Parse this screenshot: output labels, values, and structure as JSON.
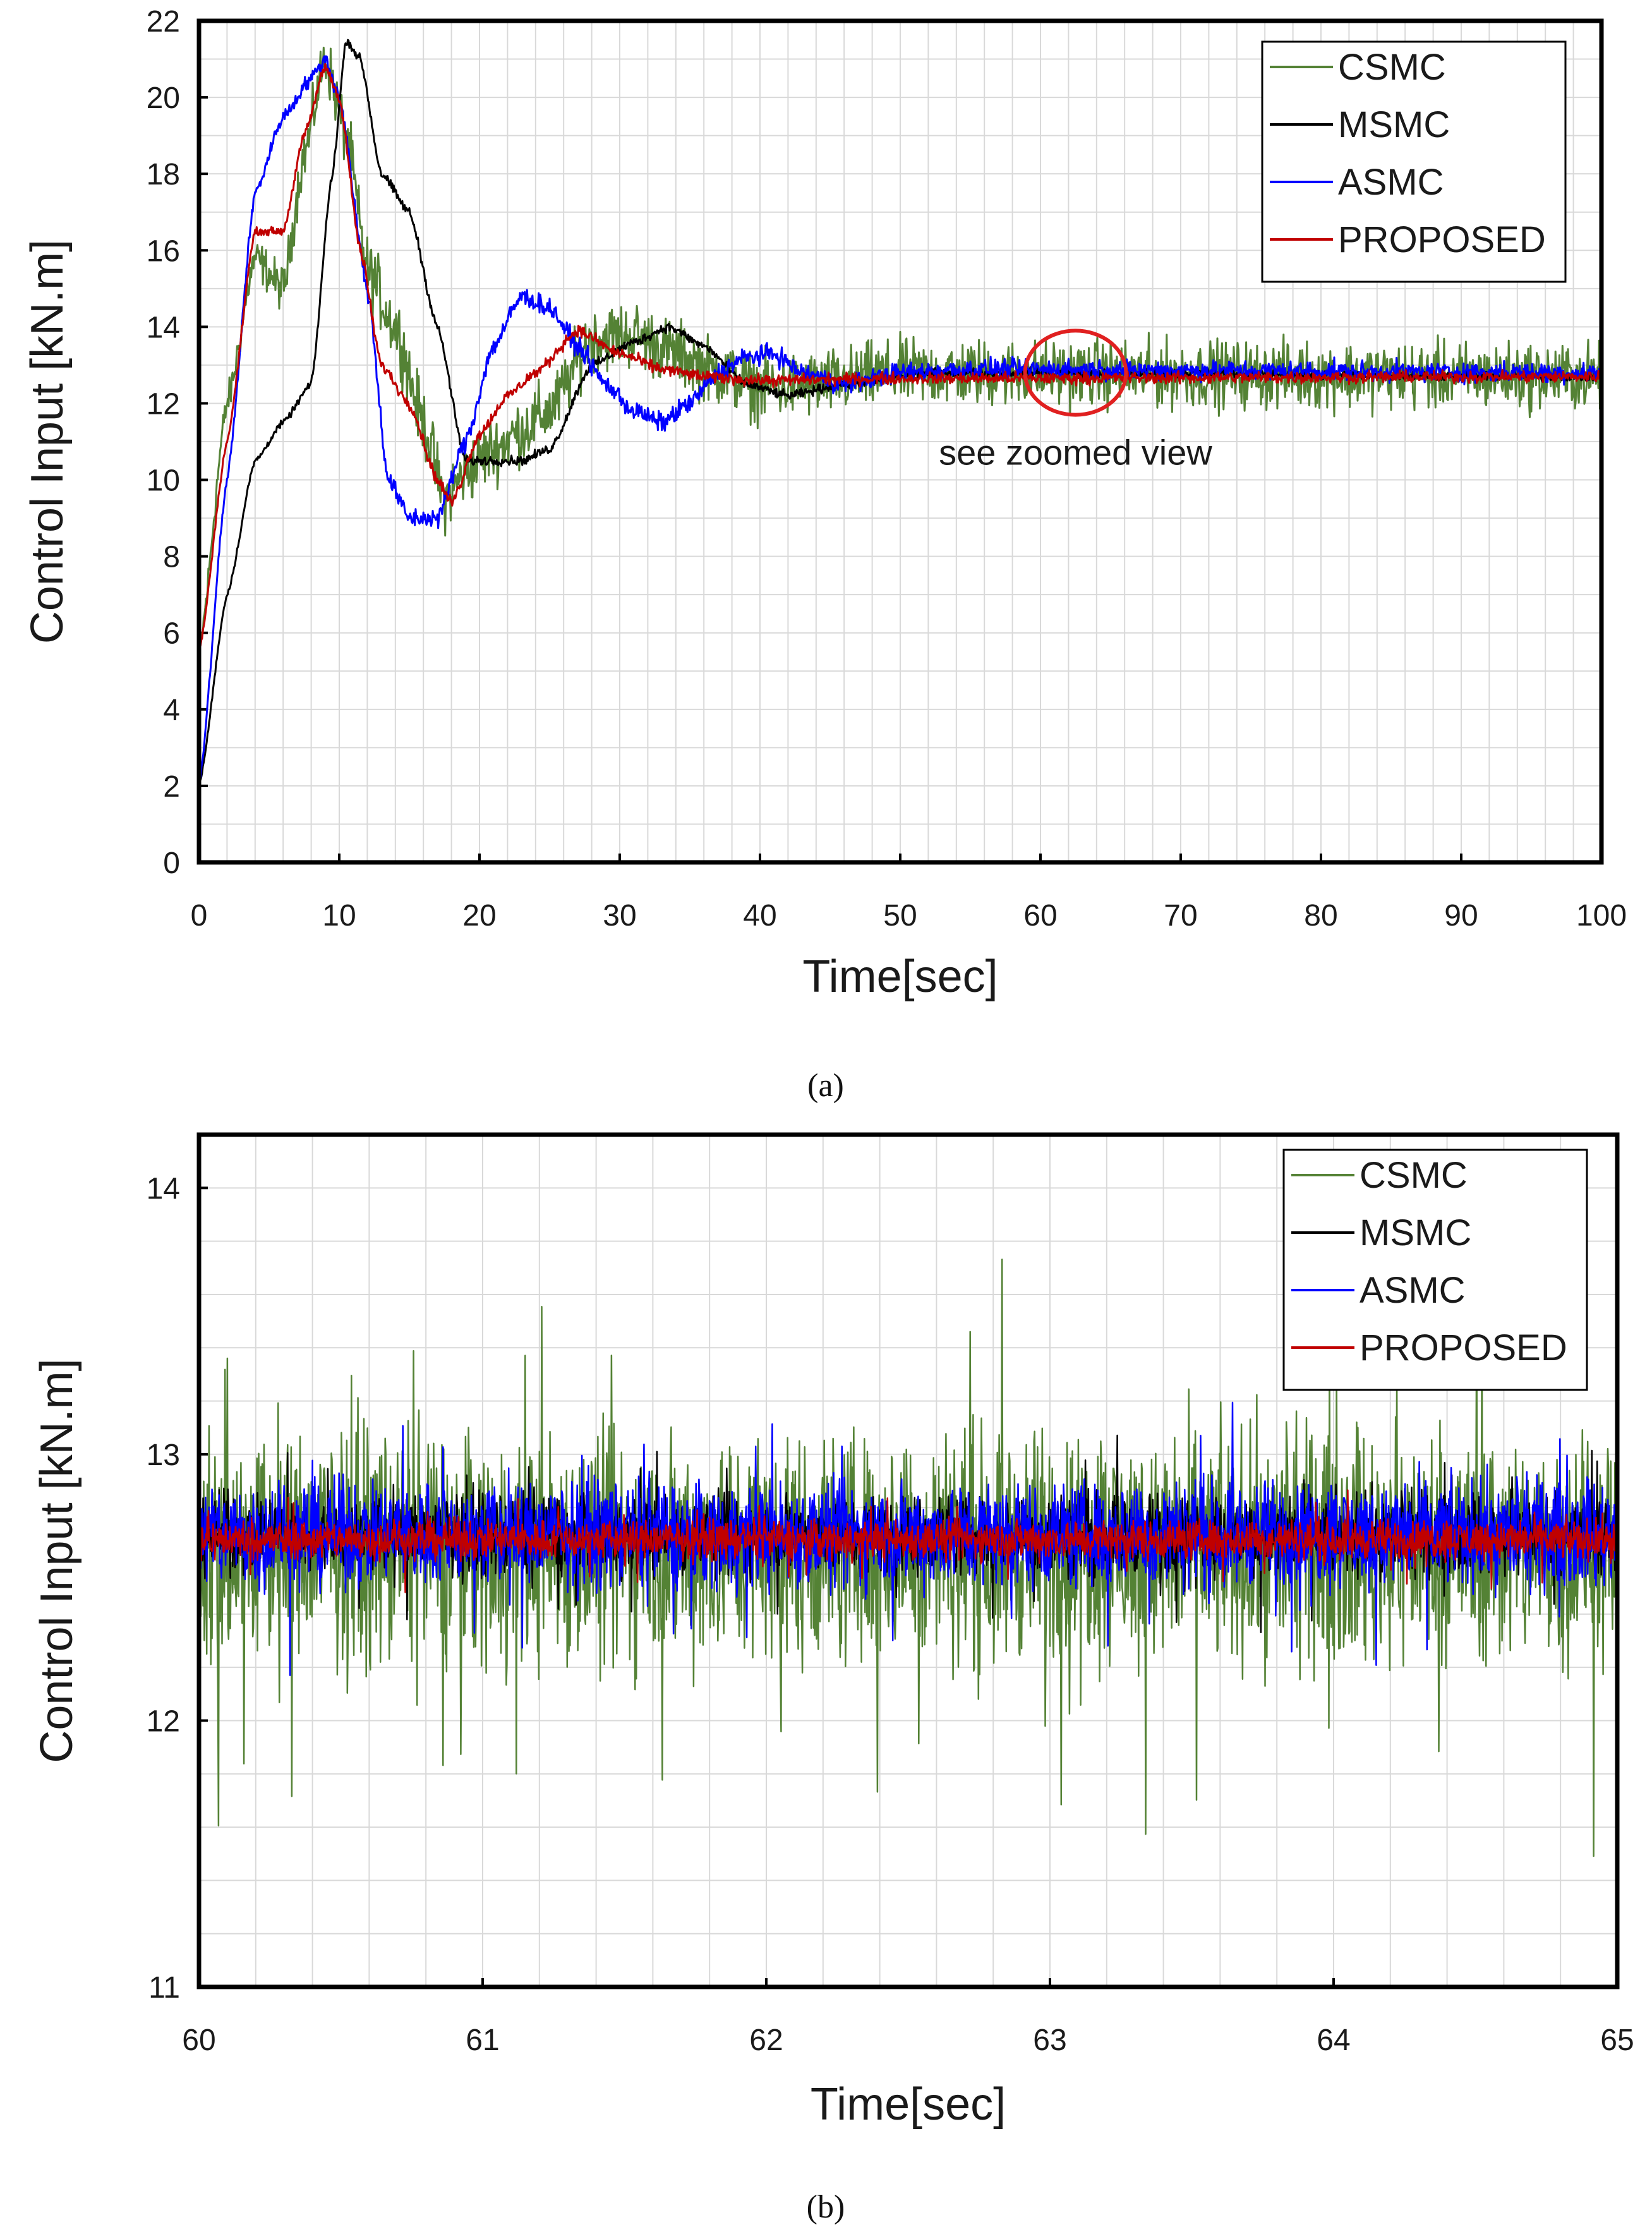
{
  "chart_data": [
    {
      "type": "line",
      "panel_label": "(a)",
      "xlabel": "Time[sec]",
      "ylabel": "Control Input [kN.m]",
      "xlim": [
        0,
        100
      ],
      "ylim": [
        0,
        22
      ],
      "xticks": [
        0,
        10,
        20,
        30,
        40,
        50,
        60,
        70,
        80,
        90,
        100
      ],
      "yticks": [
        0,
        2,
        4,
        6,
        8,
        10,
        12,
        14,
        16,
        18,
        20,
        22
      ],
      "legend_position": "top-right",
      "annotation": {
        "text": "see zoomed view",
        "center_x": 62.5,
        "center_y": 12.8,
        "rx": 3.6,
        "ry": 1.1
      },
      "series": [
        {
          "name": "CSMC",
          "color": "#548235",
          "noise": 0.85,
          "points": [
            [
              0,
              5.5
            ],
            [
              2,
              12
            ],
            [
              4,
              15.8
            ],
            [
              6,
              15
            ],
            [
              7.5,
              18.5
            ],
            [
              9,
              21
            ],
            [
              10.5,
              19
            ],
            [
              12,
              15.5
            ],
            [
              14,
              14
            ],
            [
              16,
              11.5
            ],
            [
              17.5,
              9.5
            ],
            [
              19,
              10.2
            ],
            [
              21,
              10.8
            ],
            [
              23,
              11.3
            ],
            [
              25,
              11.8
            ],
            [
              28,
              13.7
            ],
            [
              31,
              13.8
            ],
            [
              34,
              13.3
            ],
            [
              37,
              12.8
            ],
            [
              40,
              12.4
            ],
            [
              44,
              12.5
            ],
            [
              50,
              12.8
            ],
            [
              100,
              12.7
            ]
          ]
        },
        {
          "name": "MSMC",
          "color": "#000000",
          "noise": 0.12,
          "points": [
            [
              0,
              2
            ],
            [
              2,
              7
            ],
            [
              4,
              10.5
            ],
            [
              6,
              11.5
            ],
            [
              8,
              12.5
            ],
            [
              9.5,
              18
            ],
            [
              10.5,
              21.5
            ],
            [
              11.5,
              21
            ],
            [
              13,
              18
            ],
            [
              15,
              17
            ],
            [
              17,
              14
            ],
            [
              19,
              10.5
            ],
            [
              21,
              10.5
            ],
            [
              23,
              10.5
            ],
            [
              25,
              10.8
            ],
            [
              28,
              13
            ],
            [
              31,
              13.6
            ],
            [
              33.5,
              14
            ],
            [
              36,
              13.5
            ],
            [
              39,
              12.5
            ],
            [
              42,
              12.2
            ],
            [
              46,
              12.5
            ],
            [
              52,
              12.8
            ],
            [
              60,
              12.8
            ],
            [
              100,
              12.7
            ]
          ]
        },
        {
          "name": "ASMC",
          "color": "#0000ff",
          "noise": 0.25,
          "points": [
            [
              0,
              2
            ],
            [
              2,
              10
            ],
            [
              4,
              17.5
            ],
            [
              6,
              19.5
            ],
            [
              8,
              20.5
            ],
            [
              9,
              21
            ],
            [
              10,
              20
            ],
            [
              12,
              15
            ],
            [
              13.5,
              10
            ],
            [
              15,
              9
            ],
            [
              17,
              9
            ],
            [
              19,
              11
            ],
            [
              21,
              13.5
            ],
            [
              23,
              14.8
            ],
            [
              25,
              14.5
            ],
            [
              27,
              13.5
            ],
            [
              29,
              12.5
            ],
            [
              31,
              11.8
            ],
            [
              33,
              11.5
            ],
            [
              35,
              12
            ],
            [
              37,
              12.8
            ],
            [
              39,
              13.2
            ],
            [
              41,
              13.3
            ],
            [
              43,
              12.8
            ],
            [
              46,
              12.5
            ],
            [
              50,
              12.8
            ],
            [
              55,
              12.9
            ],
            [
              100,
              12.8
            ]
          ]
        },
        {
          "name": "PROPOSED",
          "color": "#c00000",
          "noise": 0.15,
          "points": [
            [
              0,
              5.5
            ],
            [
              2,
              11
            ],
            [
              4,
              16.5
            ],
            [
              6,
              16.5
            ],
            [
              7.5,
              19
            ],
            [
              9,
              20.8
            ],
            [
              10,
              20
            ],
            [
              11.5,
              16
            ],
            [
              13,
              13
            ],
            [
              15,
              12
            ],
            [
              17,
              10
            ],
            [
              18,
              9.4
            ],
            [
              20,
              11.2
            ],
            [
              22,
              12.2
            ],
            [
              24,
              12.8
            ],
            [
              27,
              13.9
            ],
            [
              30,
              13.3
            ],
            [
              33,
              12.9
            ],
            [
              36,
              12.7
            ],
            [
              40,
              12.6
            ],
            [
              50,
              12.65
            ],
            [
              100,
              12.7
            ]
          ]
        }
      ]
    },
    {
      "type": "line",
      "panel_label": "(b)",
      "xlabel": "Time[sec]",
      "ylabel": "Control Input [kN.m]",
      "xlim": [
        60,
        65
      ],
      "ylim": [
        11,
        14.2
      ],
      "xticks": [
        60,
        61,
        62,
        63,
        64,
        65
      ],
      "yticks": [
        11,
        12,
        13,
        14
      ],
      "legend_position": "top-right",
      "series": [
        {
          "name": "CSMC",
          "color": "#548235",
          "center": 12.65,
          "noise": 0.35
        },
        {
          "name": "MSMC",
          "color": "#000000",
          "center": 12.7,
          "noise": 0.12
        },
        {
          "name": "ASMC",
          "color": "#0000ff",
          "center": 12.7,
          "noise": 0.16
        },
        {
          "name": "PROPOSED",
          "color": "#c00000",
          "center": 12.68,
          "noise": 0.06
        }
      ]
    }
  ]
}
